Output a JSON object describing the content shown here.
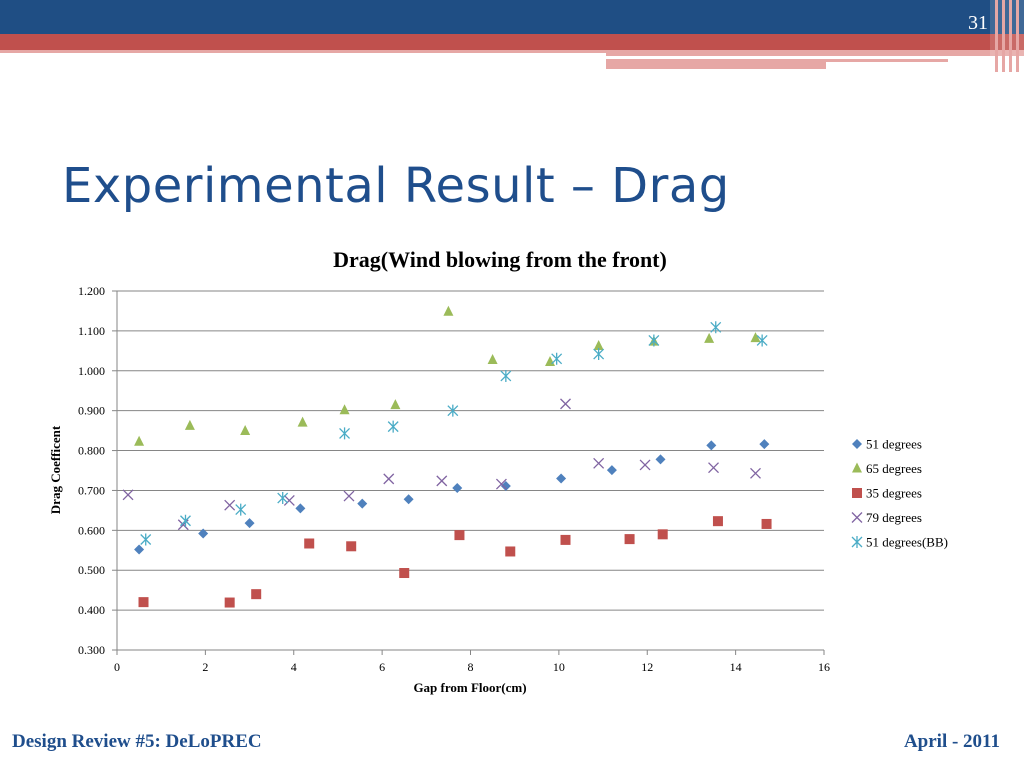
{
  "slide": {
    "number": "31",
    "title": "Experimental Result – Drag",
    "footer_left": "Design Review #5: DeLoPREC",
    "footer_right": "April - 2011",
    "colors": {
      "header_blue": "#1f4e84",
      "header_red": "#c0504d",
      "header_pink": "#e6a7a5",
      "title_blue": "#1f4e8c"
    }
  },
  "chart_data": {
    "type": "scatter",
    "title": "Drag(Wind blowing from the front)",
    "xlabel": "Gap from Floor(cm)",
    "ylabel": "Drag Coefficent",
    "xlim": [
      0,
      16
    ],
    "ylim": [
      0.3,
      1.2
    ],
    "xticks": [
      0,
      2,
      4,
      6,
      8,
      10,
      12,
      14,
      16
    ],
    "yticks": [
      0.3,
      0.4,
      0.5,
      0.6,
      0.7,
      0.8,
      0.9,
      1.0,
      1.1,
      1.2
    ],
    "ytick_labels": [
      "0.300",
      "0.400",
      "0.500",
      "0.600",
      "0.700",
      "0.800",
      "0.900",
      "1.000",
      "1.100",
      "1.200"
    ],
    "grid": "horizontal",
    "legend_position": "right",
    "series": [
      {
        "name": "51 degrees",
        "marker": "diamond",
        "color": "#4f81bd",
        "points": [
          [
            0.5,
            0.552
          ],
          [
            1.95,
            0.592
          ],
          [
            3.0,
            0.618
          ],
          [
            4.15,
            0.655
          ],
          [
            5.55,
            0.667
          ],
          [
            6.6,
            0.678
          ],
          [
            7.7,
            0.706
          ],
          [
            8.8,
            0.711
          ],
          [
            10.05,
            0.73
          ],
          [
            11.2,
            0.751
          ],
          [
            12.3,
            0.778
          ],
          [
            13.45,
            0.813
          ],
          [
            14.65,
            0.816
          ]
        ]
      },
      {
        "name": "65 degrees",
        "marker": "triangle",
        "color": "#9bbb59",
        "points": [
          [
            0.5,
            0.822
          ],
          [
            1.65,
            0.862
          ],
          [
            2.9,
            0.849
          ],
          [
            4.2,
            0.87
          ],
          [
            5.15,
            0.901
          ],
          [
            6.3,
            0.914
          ],
          [
            7.5,
            1.148
          ],
          [
            8.5,
            1.027
          ],
          [
            9.8,
            1.022
          ],
          [
            10.9,
            1.062
          ],
          [
            12.15,
            1.073
          ],
          [
            13.4,
            1.08
          ],
          [
            14.45,
            1.082
          ]
        ]
      },
      {
        "name": "35 degrees",
        "marker": "square",
        "color": "#c0504d",
        "points": [
          [
            0.6,
            0.42
          ],
          [
            2.55,
            0.419
          ],
          [
            3.15,
            0.44
          ],
          [
            4.35,
            0.567
          ],
          [
            5.3,
            0.56
          ],
          [
            6.5,
            0.493
          ],
          [
            7.75,
            0.588
          ],
          [
            8.9,
            0.547
          ],
          [
            10.15,
            0.576
          ],
          [
            11.6,
            0.578
          ],
          [
            12.35,
            0.59
          ],
          [
            13.6,
            0.623
          ],
          [
            14.7,
            0.616
          ]
        ]
      },
      {
        "name": "79 degrees",
        "marker": "x",
        "color": "#8064a2",
        "points": [
          [
            0.25,
            0.689
          ],
          [
            1.5,
            0.614
          ],
          [
            2.55,
            0.663
          ],
          [
            3.9,
            0.675
          ],
          [
            5.25,
            0.686
          ],
          [
            6.15,
            0.729
          ],
          [
            7.35,
            0.724
          ],
          [
            8.7,
            0.716
          ],
          [
            10.15,
            0.917
          ],
          [
            10.9,
            0.768
          ],
          [
            11.95,
            0.764
          ],
          [
            13.5,
            0.757
          ],
          [
            14.45,
            0.743
          ]
        ]
      },
      {
        "name": "51 degrees(BB)",
        "marker": "asterisk",
        "color": "#4bacc6",
        "points": [
          [
            0.65,
            0.577
          ],
          [
            1.55,
            0.624
          ],
          [
            2.8,
            0.652
          ],
          [
            3.75,
            0.681
          ],
          [
            5.15,
            0.843
          ],
          [
            6.25,
            0.86
          ],
          [
            7.6,
            0.9
          ],
          [
            8.8,
            0.987
          ],
          [
            9.95,
            1.03
          ],
          [
            10.9,
            1.042
          ],
          [
            12.15,
            1.076
          ],
          [
            13.55,
            1.109
          ],
          [
            14.6,
            1.076
          ]
        ]
      }
    ]
  }
}
